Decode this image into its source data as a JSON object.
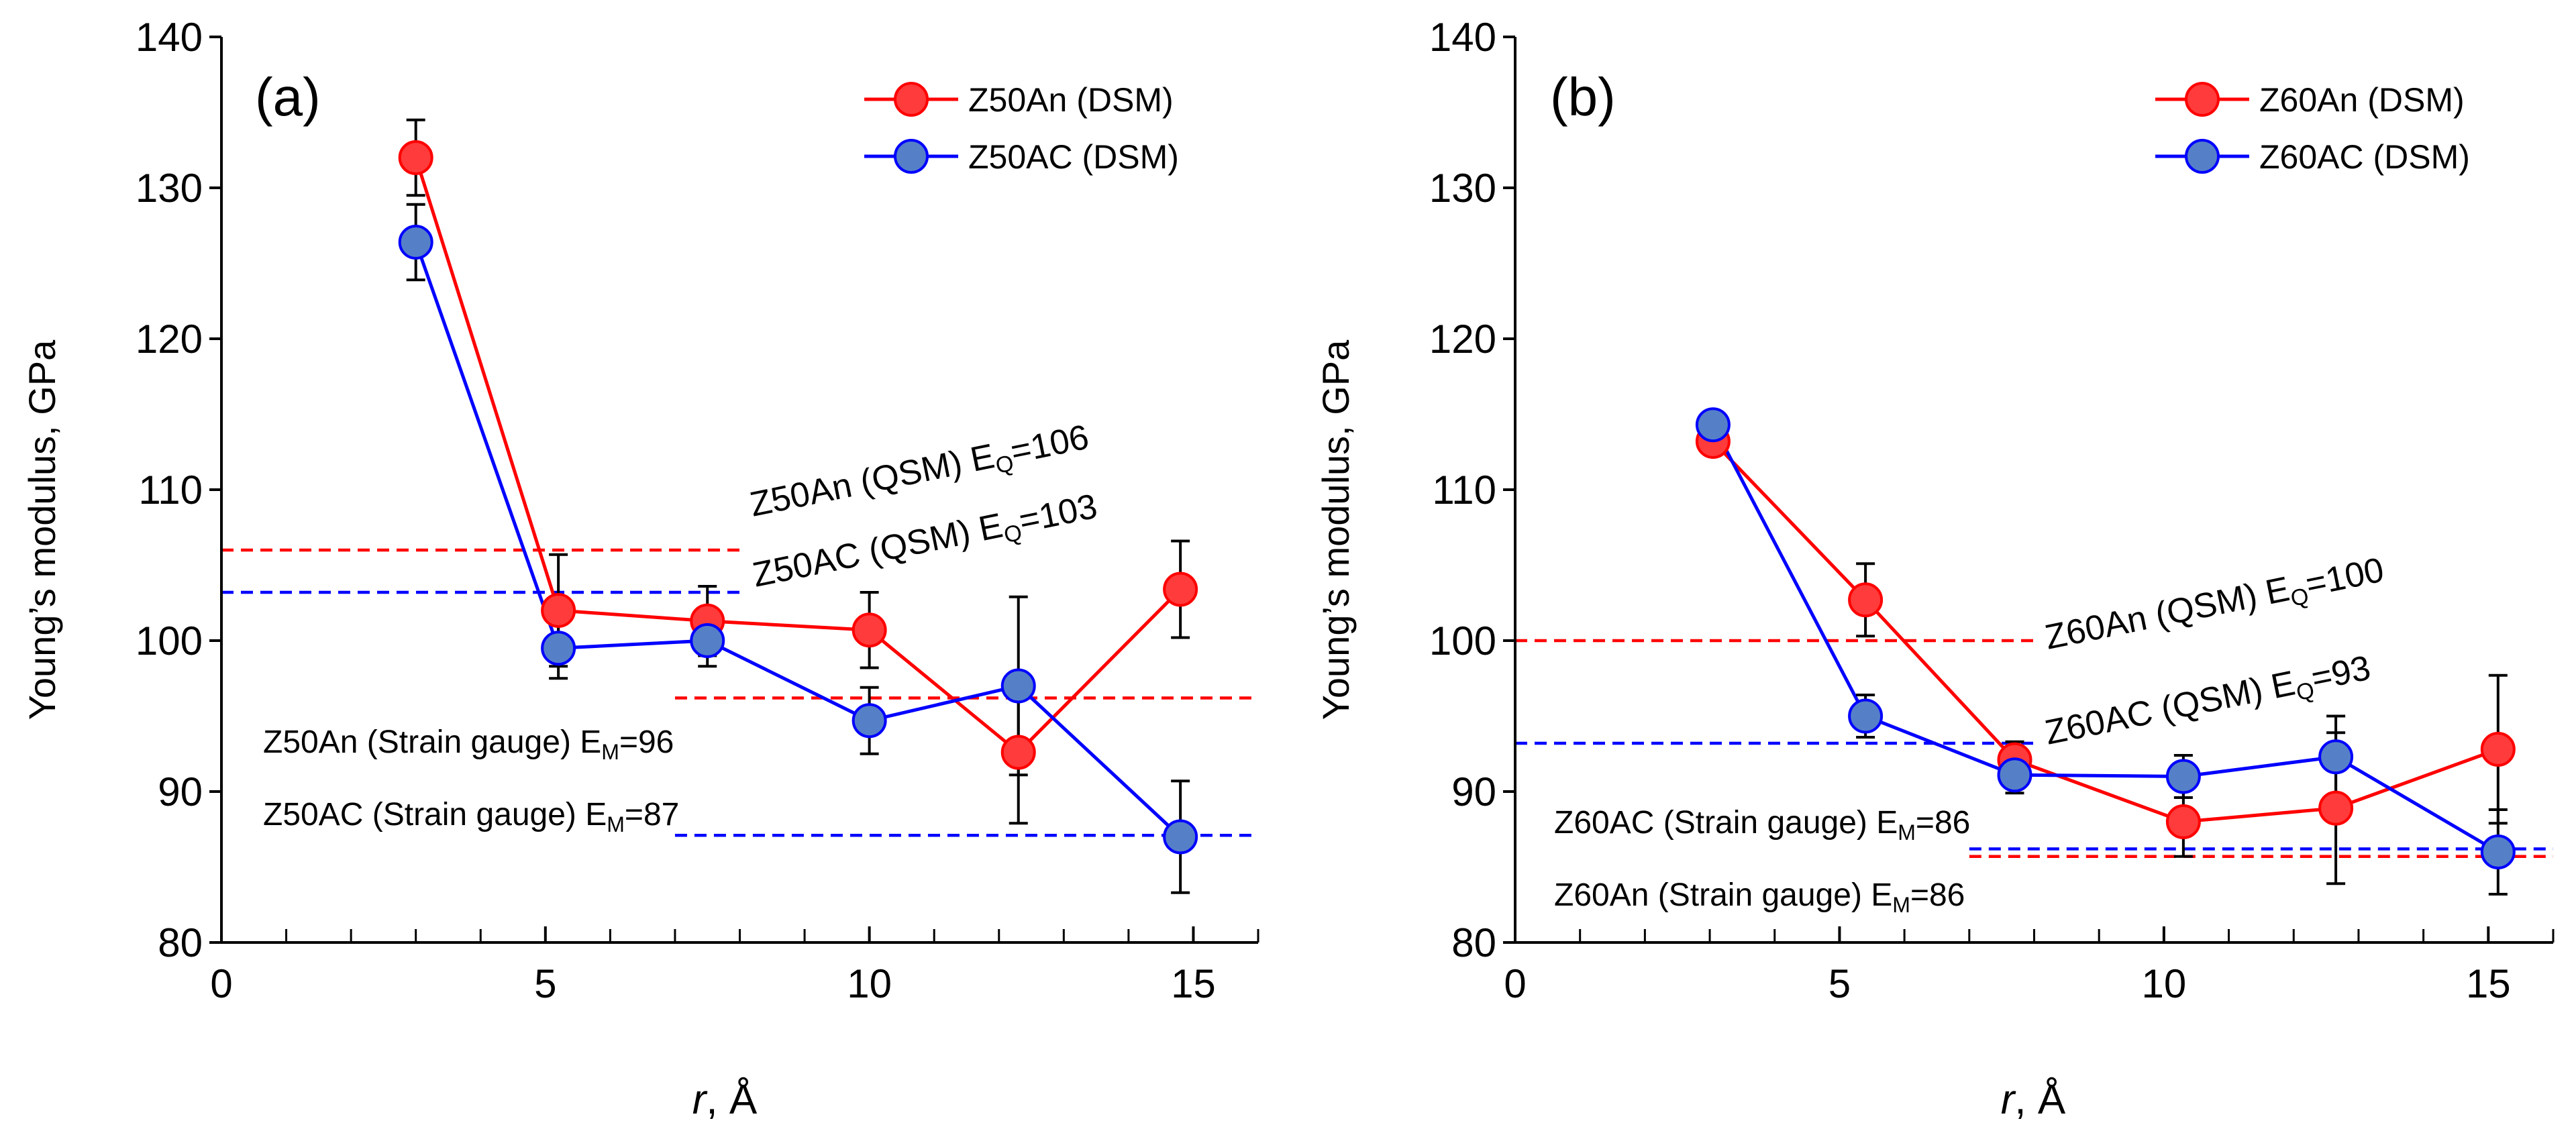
{
  "chart_data": [
    {
      "type": "line",
      "panel_label": "(a)",
      "xlabel_italic": "r",
      "xlabel_rest": ", Å",
      "ylabel": "Young’s modulus,  GPa",
      "xlim": [
        0,
        16
      ],
      "ylim": [
        80,
        140
      ],
      "xticks": [
        0,
        5,
        10,
        15
      ],
      "yticks": [
        80,
        90,
        100,
        110,
        120,
        130,
        140
      ],
      "x_minor_step": 1,
      "series": [
        {
          "name": "Z50An (DSM)",
          "color": "#ff0000",
          "marker_color": "#ff3b3b",
          "x": [
            3.0,
            5.2,
            7.5,
            10.0,
            12.3,
            14.8
          ],
          "y": [
            132.0,
            102.0,
            101.3,
            100.7,
            92.6,
            103.4
          ],
          "err": [
            2.5,
            3.7,
            2.3,
            2.5,
            4.7,
            3.2
          ]
        },
        {
          "name": "Z50AC (DSM)",
          "color": "#0000ff",
          "marker_color": "#5580c8",
          "x": [
            3.0,
            5.2,
            7.5,
            10.0,
            12.3,
            14.8
          ],
          "y": [
            126.4,
            99.5,
            100.0,
            94.7,
            97.0,
            87.0
          ],
          "err": [
            2.5,
            2.0,
            1.7,
            2.2,
            5.9,
            3.7
          ]
        }
      ],
      "reference_lines": [
        {
          "name": "Z50An (QSM) E_Q=106",
          "value": 106,
          "x_range": [
            0,
            8
          ],
          "color": "#ff0000"
        },
        {
          "name": "Z50AC (QSM) E_Q=103",
          "value": 103.2,
          "x_range": [
            0,
            8
          ],
          "color": "#0000ff"
        },
        {
          "name": "Z50An (Strain gauge) E_M=96",
          "value": 96.2,
          "x_range": [
            7,
            16
          ],
          "color": "#ff0000"
        },
        {
          "name": "Z50AC (Strain gauge) E_M=87",
          "value": 87.1,
          "x_range": [
            7,
            16
          ],
          "color": "#0000ff"
        }
      ],
      "annotations": {
        "qsm_an": {
          "pre": "Z50An (QSM) E",
          "sub": "Q",
          "post": "=106"
        },
        "qsm_ac": {
          "pre": "Z50AC (QSM) E",
          "sub": "Q",
          "post": "=103"
        },
        "sg_1": {
          "pre": "Z50An (Strain gauge)  E",
          "sub": "M",
          "post": "=96"
        },
        "sg_2": {
          "pre": "Z50AC (Strain gauge)  E",
          "sub": "M",
          "post": "=87"
        }
      }
    },
    {
      "type": "line",
      "panel_label": "(b)",
      "xlabel_italic": "r",
      "xlabel_rest": ", Å",
      "ylabel": "Young’s modulus,  GPa",
      "xlim": [
        0,
        16
      ],
      "ylim": [
        80,
        140
      ],
      "xticks": [
        0,
        5,
        10,
        15
      ],
      "yticks": [
        80,
        90,
        100,
        110,
        120,
        130,
        140
      ],
      "x_minor_step": 1,
      "series": [
        {
          "name": "Z60An (DSM)",
          "color": "#ff0000",
          "marker_color": "#ff3b3b",
          "x": [
            3.05,
            5.4,
            7.7,
            10.3,
            12.65,
            15.15
          ],
          "y": [
            113.2,
            102.7,
            92.1,
            88.0,
            88.9,
            92.8
          ],
          "err": [
            0.8,
            2.4,
            1.2,
            2.3,
            5.0,
            4.9
          ]
        },
        {
          "name": "Z60AC (DSM)",
          "color": "#0000ff",
          "marker_color": "#5580c8",
          "x": [
            3.05,
            5.4,
            7.7,
            10.3,
            12.65,
            15.15
          ],
          "y": [
            114.3,
            95.0,
            91.1,
            91.0,
            92.3,
            86.0
          ],
          "err": [
            0.7,
            1.4,
            1.2,
            1.4,
            2.7,
            2.8
          ]
        }
      ],
      "reference_lines": [
        {
          "name": "Z60An (QSM) E_Q=100",
          "value": 100,
          "x_range": [
            0,
            8
          ],
          "color": "#ff0000"
        },
        {
          "name": "Z60AC (QSM) E_Q=93",
          "value": 93.2,
          "x_range": [
            0,
            8
          ],
          "color": "#0000ff"
        },
        {
          "name": "Z60AC (Strain gauge) E_M=86",
          "value": 86.2,
          "x_range": [
            7,
            16
          ],
          "color": "#0000ff"
        },
        {
          "name": "Z60An (Strain gauge) E_M=86",
          "value": 85.7,
          "x_range": [
            7,
            16
          ],
          "color": "#ff0000"
        }
      ],
      "annotations": {
        "qsm_an": {
          "pre": "Z60An (QSM) E",
          "sub": "Q",
          "post": "=100"
        },
        "qsm_ac": {
          "pre": "Z60AC (QSM) E",
          "sub": "Q",
          "post": "=93"
        },
        "sg_1": {
          "pre": "Z60AC (Strain gauge)  E",
          "sub": "M",
          "post": "=86"
        },
        "sg_2": {
          "pre": "Z60An (Strain gauge)  E",
          "sub": "M",
          "post": "=86"
        }
      }
    }
  ]
}
